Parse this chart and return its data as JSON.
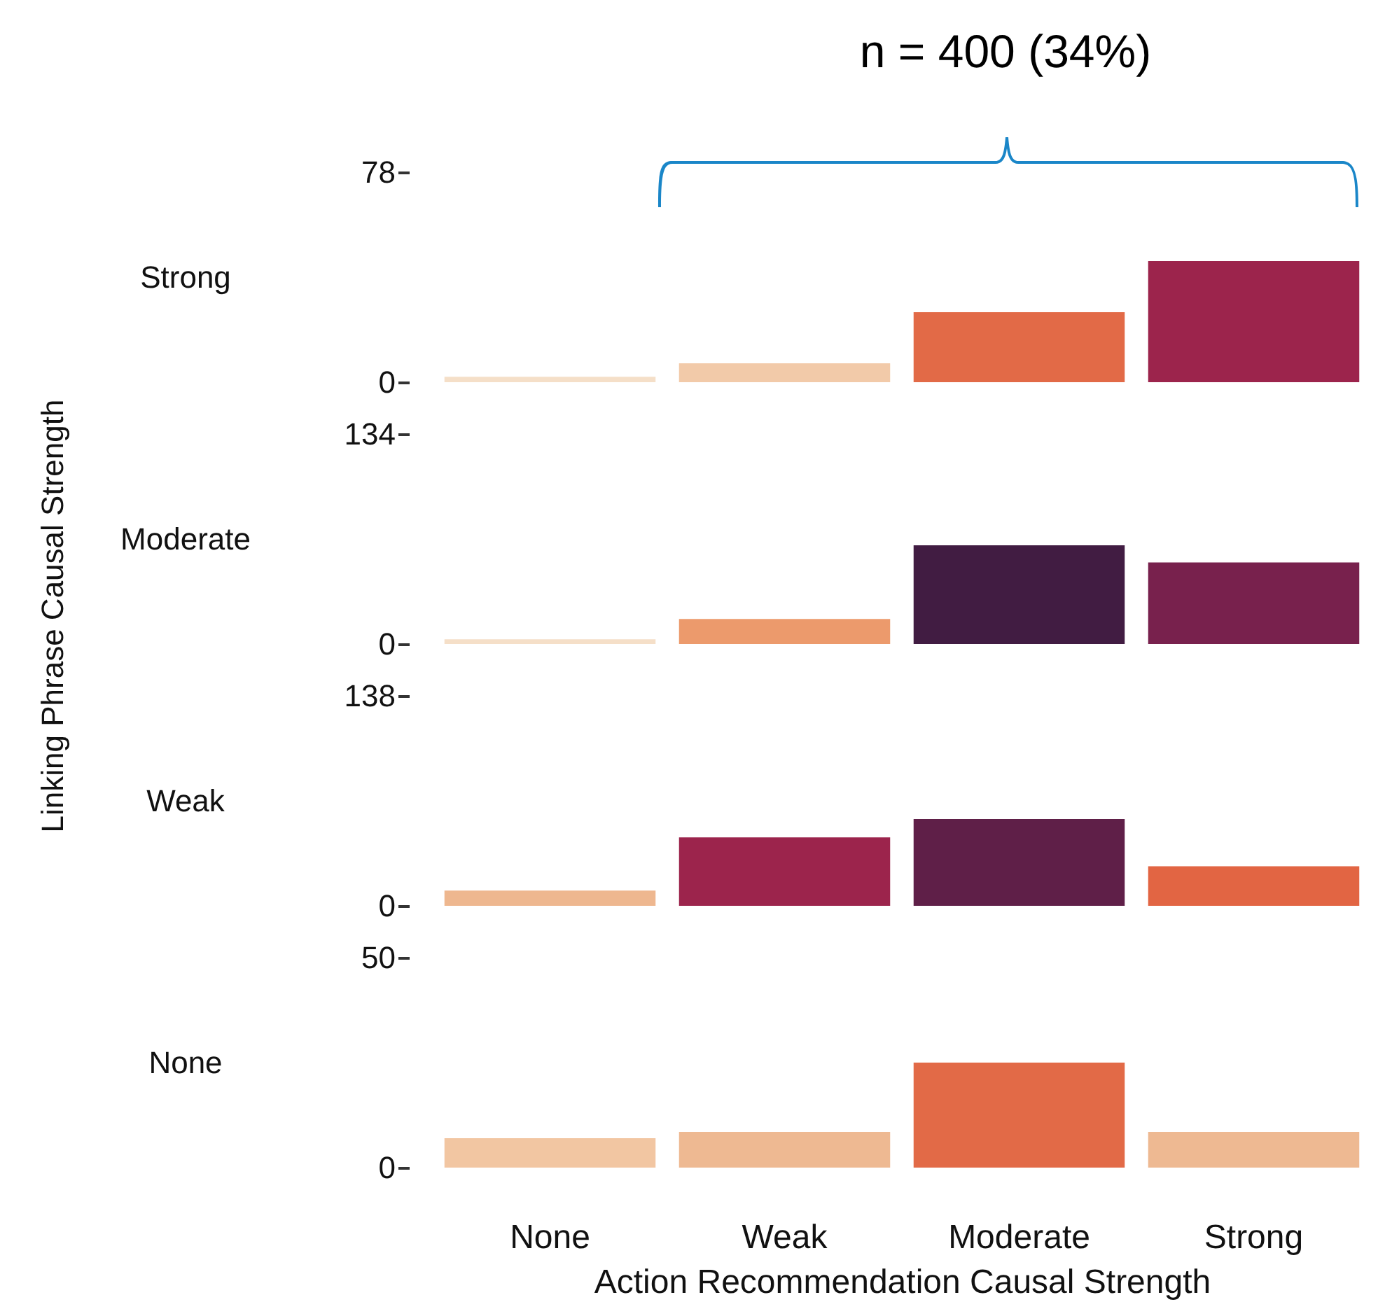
{
  "chart_data": [
    {
      "type": "bar",
      "ylabel": "Strong",
      "categories": [
        null,
        null,
        null,
        null
      ],
      "values": [
        2,
        7,
        26,
        45
      ],
      "colors": [
        "#f5dfc8",
        "#f2caa9",
        "#e26a47",
        "#9c244c"
      ],
      "ylim": [
        0,
        78
      ],
      "yticks": [
        0,
        78
      ],
      "tick_labels": "y",
      "annotations": [
        "n = 400 (34%)",
        "Linking Phrase Causal Strength"
      ]
    },
    {
      "type": "bar",
      "ylabel": "Moderate",
      "categories": [
        null,
        null,
        null,
        null
      ],
      "values": [
        3,
        16,
        63,
        52
      ],
      "colors": [
        "#f5dfc8",
        "#ec9a6c",
        "#411c42",
        "#78214d"
      ],
      "ylim": [
        0,
        134
      ],
      "yticks": [
        0,
        134
      ],
      "tick_labels": "y"
    },
    {
      "type": "bar",
      "ylabel": "Weak",
      "categories": [
        null,
        null,
        null,
        null
      ],
      "values": [
        10,
        45,
        57,
        26
      ],
      "colors": [
        "#eeb78f",
        "#9c244c",
        "#5f1f48",
        "#e26543"
      ],
      "ylim": [
        0,
        138
      ],
      "yticks": [
        0,
        138
      ],
      "tick_labels": "y"
    },
    {
      "type": "bar",
      "ylabel": "None",
      "xlabel": "Action Recommendation Causal Strength",
      "categories": [
        "None",
        "Weak",
        "Moderate",
        "Strong"
      ],
      "values": [
        7,
        8.5,
        25,
        8.5
      ],
      "colors": [
        "#f2c6a2",
        "#eeb992",
        "#e26a47",
        "#eeb992"
      ],
      "ylim": [
        0,
        50
      ],
      "yticks": [
        0,
        50
      ]
    }
  ]
}
